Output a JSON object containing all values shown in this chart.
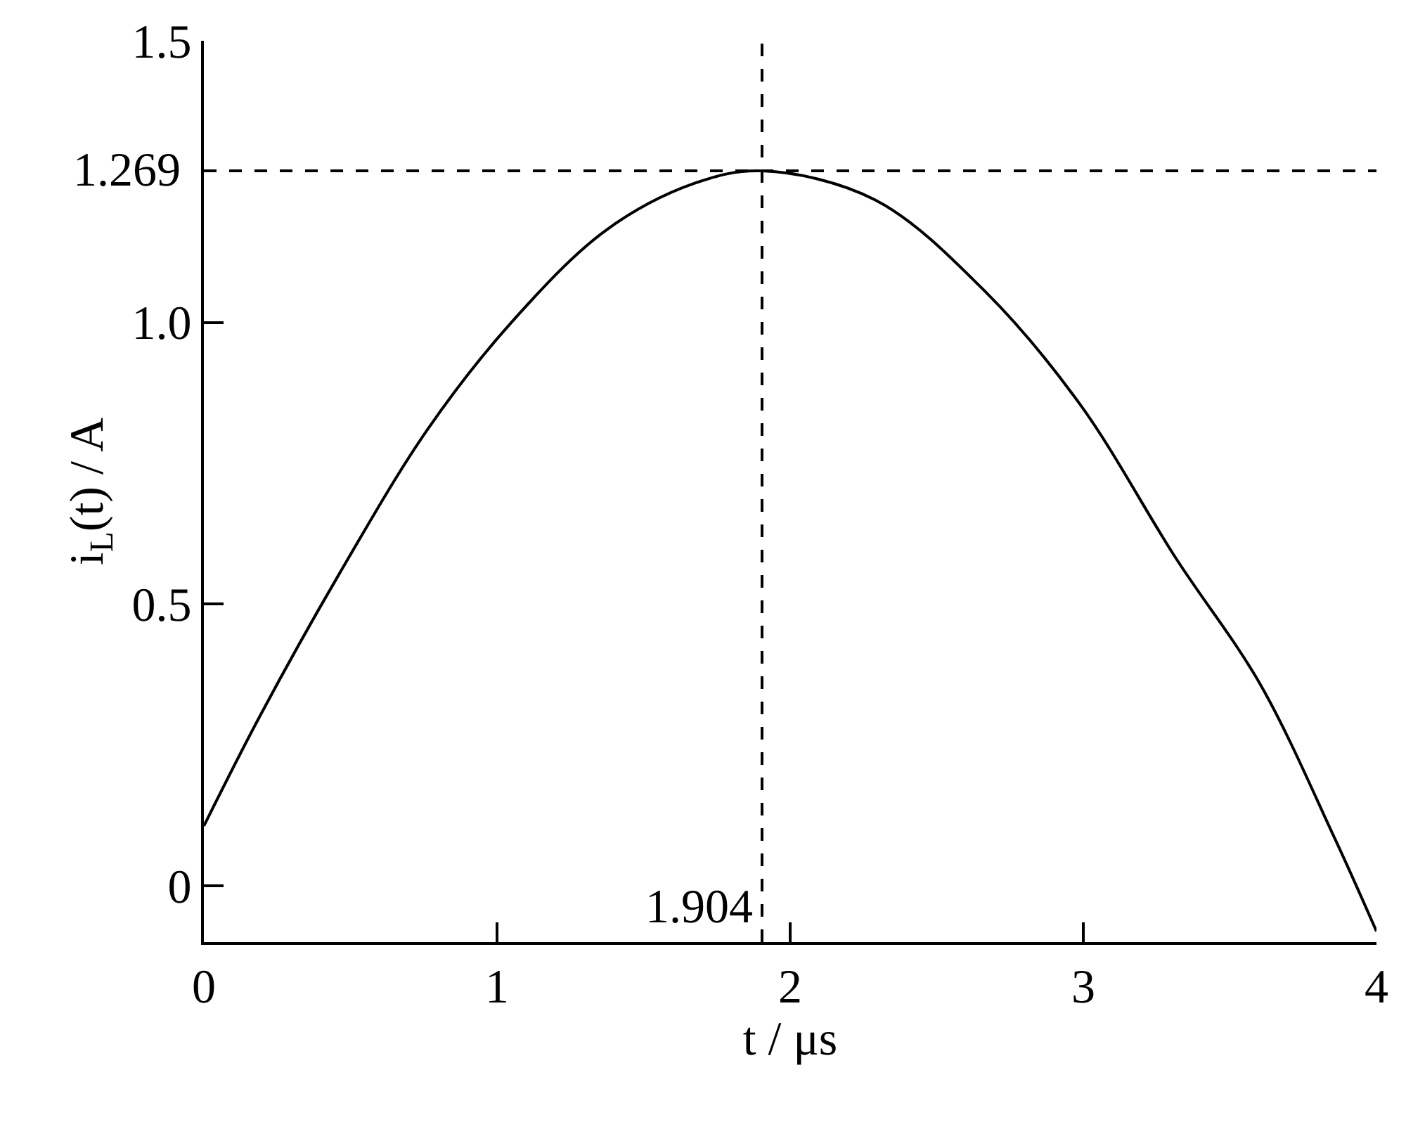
{
  "chart_data": {
    "type": "line",
    "xlabel": "t / μs",
    "ylabel": "i$_{L}$(t) / A",
    "x": [
      0,
      0.19,
      0.459,
      0.763,
      1.049,
      1.37,
      1.674,
      1.904,
      2.288,
      2.667,
      2.991,
      3.315,
      3.603,
      3.855,
      4
    ],
    "series": [
      {
        "color": "#000000",
        "values": [
          0.106,
          0.3,
          0.551,
          0.81,
          1.0,
          1.163,
          1.247,
          1.269,
          1.218,
          1.054,
          0.853,
          0.582,
          0.358,
          0.087,
          -0.081
        ]
      }
    ],
    "xlim": [
      0,
      4
    ],
    "ylim": [
      -0.1,
      1.5
    ],
    "xticks": [
      0,
      1,
      2,
      3,
      4
    ],
    "yticks": [
      {
        "value": 0,
        "label": "0"
      },
      0.5,
      {
        "value": 1,
        "label": "1.0"
      },
      1.5
    ],
    "ref_lines": [
      {
        "axis": "y",
        "value": 1.269,
        "label": "1.269",
        "color": "#000000",
        "line_style": "dashed"
      },
      {
        "axis": "x",
        "value": 1.904,
        "label": "1.904",
        "color": "#000000",
        "line_style": "dashed"
      }
    ],
    "marker": "none",
    "line_style": "solid"
  }
}
